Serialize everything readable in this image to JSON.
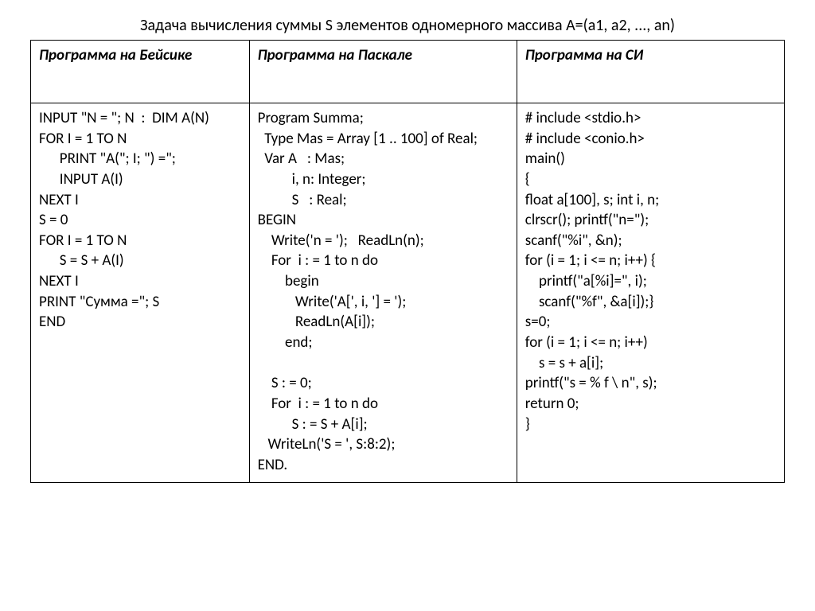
{
  "title": "Задача вычисления суммы S элементов одномерного массива A=(a1, a2, ..., an)",
  "table": {
    "columns": [
      "Программа на Бейсике",
      "Программа на Паскале",
      "Программа на СИ"
    ],
    "cells": {
      "basic": "INPUT \"N = \"; N  :  DIM A(N)\nFOR I = 1 TO N\n      PRINT \"A(\"; I; \") =\";\n      INPUT A(I)\nNEXT I\nS = 0\nFOR I = 1 TO N\n      S = S + A(I)\nNEXT I\nPRINT \"Сумма =\"; S\nEND",
      "pascal": "Program Summa;\n  Type Mas = Array [1 .. 100] of Real;\n  Var A   : Mas;\n          i, n: Integer;\n          S   : Real;\nBEGIN\n    Write('n = ');   ReadLn(n);\n    For  i : = 1 to n do\n        begin\n           Write('A[', i, '] = ');\n           ReadLn(A[i]);\n        end;\n\n    S : = 0;\n    For  i : = 1 to n do\n          S : = S + A[i];\n   WriteLn('S = ', S:8:2);\nEND.",
      "c": "# include <stdio.h>\n# include <conio.h>\nmain()\n{\nfloat a[100], s; int i, n;\nclrscr(); printf(\"n=\");\nscanf(\"%i\", &n);\nfor (i = 1; i <= n; i++) {\n    printf(\"a[%i]=\", i);\n    scanf(\"%f\", &a[i]);}\ns=0;\nfor (i = 1; i <= n; i++)\n    s = s + a[i];\nprintf(\"s = % f \\ n\", s);\nreturn 0;\n}"
    }
  },
  "styling": {
    "background_color": "#ffffff",
    "text_color": "#000000",
    "border_color": "#000000",
    "title_fontsize": 20,
    "cell_fontsize": 19,
    "header_fontweight": "bold",
    "header_fontstyle": "italic",
    "column_widths_pct": [
      29,
      35.5,
      35.5
    ]
  }
}
